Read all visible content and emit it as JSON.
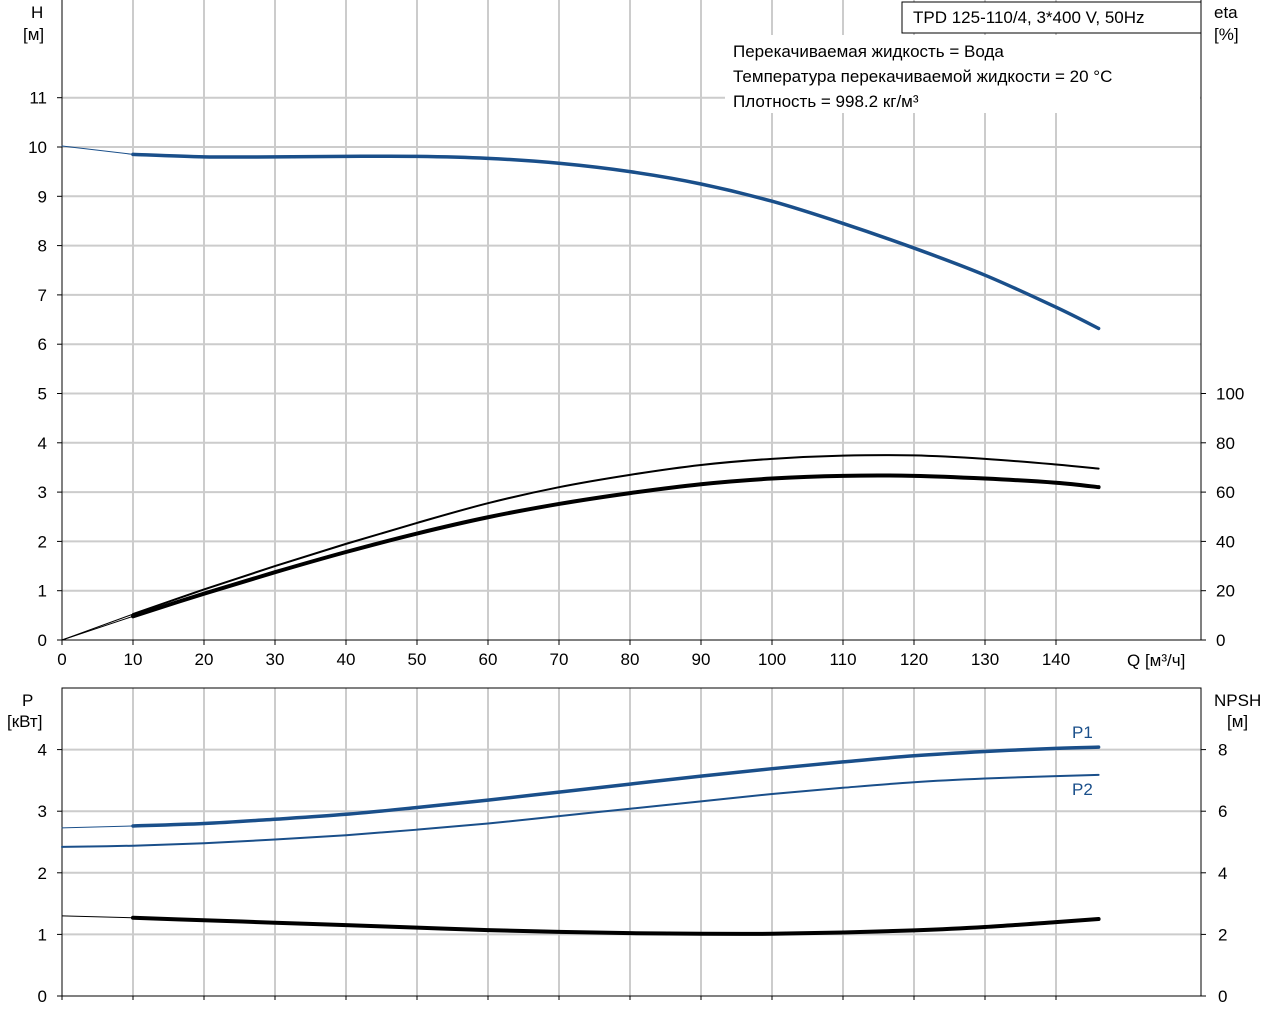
{
  "header": {
    "pump_model": "TPD 125-110/4, 3*400 V, 50Hz",
    "liquid": "Перекачиваемая жидкость = Вода",
    "temperature": "Температура перекачиваемой жидкости = 20 °C",
    "density": "Плотность = 998.2 кг/м³"
  },
  "colors": {
    "blue": "#1a4f8a",
    "black": "#000000",
    "grid": "#cccccc"
  },
  "chart_data": [
    {
      "type": "line",
      "x_axis": {
        "label": "Q [м³/ч]",
        "range": [
          0,
          148
        ],
        "ticks": [
          "0",
          "10",
          "20",
          "30",
          "40",
          "50",
          "60",
          "70",
          "80",
          "90",
          "100",
          "110",
          "120",
          "130",
          "140"
        ]
      },
      "y_left": {
        "label_top": "H",
        "label_unit": "[м]",
        "range": [
          0,
          12
        ],
        "ticks": [
          "0",
          "1",
          "2",
          "3",
          "4",
          "5",
          "6",
          "7",
          "8",
          "9",
          "10",
          "11"
        ]
      },
      "y_right": {
        "label_top": "eta",
        "label_unit": "[%]",
        "range": [
          0,
          100
        ],
        "ticks": [
          "0",
          "20",
          "40",
          "60",
          "80",
          "100"
        ]
      },
      "grid": true,
      "series": [
        {
          "axis": "left",
          "color": "#1a4f8a",
          "width": 3.5,
          "points": [
            [
              10,
              9.85
            ],
            [
              20,
              9.8
            ],
            [
              30,
              9.8
            ],
            [
              40,
              9.81
            ],
            [
              50,
              9.81
            ],
            [
              60,
              9.77
            ],
            [
              70,
              9.67
            ],
            [
              80,
              9.5
            ],
            [
              90,
              9.25
            ],
            [
              100,
              8.9
            ],
            [
              110,
              8.45
            ],
            [
              120,
              7.95
            ],
            [
              130,
              7.4
            ],
            [
              140,
              6.75
            ],
            [
              146,
              6.32
            ]
          ]
        },
        {
          "axis": "left",
          "color": "#1a4f8a",
          "width": 1,
          "points": [
            [
              0,
              10.02
            ],
            [
              10,
              9.85
            ]
          ]
        },
        {
          "axis": "right",
          "color": "#000000",
          "width": 2,
          "points": [
            [
              10,
              10.5
            ],
            [
              20,
              20.5
            ],
            [
              30,
              30
            ],
            [
              40,
              39
            ],
            [
              50,
              47.5
            ],
            [
              60,
              55.5
            ],
            [
              70,
              62
            ],
            [
              80,
              67
            ],
            [
              90,
              71
            ],
            [
              100,
              73.5
            ],
            [
              110,
              74.8
            ],
            [
              120,
              74.9
            ],
            [
              130,
              73.5
            ],
            [
              140,
              71.2
            ],
            [
              146,
              69.5
            ]
          ]
        },
        {
          "axis": "right",
          "color": "#000000",
          "width": 4,
          "points": [
            [
              10,
              9.6
            ],
            [
              20,
              18.8
            ],
            [
              30,
              27.5
            ],
            [
              40,
              35.7
            ],
            [
              50,
              43.2
            ],
            [
              60,
              49.8
            ],
            [
              70,
              55.2
            ],
            [
              80,
              59.6
            ],
            [
              90,
              63.2
            ],
            [
              100,
              65.5
            ],
            [
              110,
              66.6
            ],
            [
              120,
              66.6
            ],
            [
              130,
              65.5
            ],
            [
              140,
              63.8
            ],
            [
              146,
              62
            ]
          ]
        },
        {
          "axis": "right",
          "color": "#000000",
          "width": 1,
          "points": [
            [
              0,
              0
            ],
            [
              10,
              10.5
            ]
          ]
        },
        {
          "axis": "right",
          "color": "#000000",
          "width": 1,
          "points": [
            [
              0,
              0
            ],
            [
              10,
              9.6
            ]
          ]
        }
      ]
    },
    {
      "type": "line",
      "x_axis": {
        "range": [
          0,
          148
        ]
      },
      "y_left": {
        "label_top": "P",
        "label_unit": "[кВт]",
        "range": [
          0,
          4.6
        ],
        "ticks": [
          "0",
          "1",
          "2",
          "3",
          "4"
        ]
      },
      "y_right": {
        "label_top": "NPSH",
        "label_unit": "[м]",
        "range": [
          0,
          9.2
        ],
        "ticks": [
          "0",
          "2",
          "4",
          "6",
          "8"
        ]
      },
      "grid": true,
      "series": [
        {
          "name": "P1",
          "axis": "left",
          "color": "#1a4f8a",
          "width": 3.5,
          "points": [
            [
              10,
              2.76
            ],
            [
              20,
              2.8
            ],
            [
              30,
              2.87
            ],
            [
              40,
              2.95
            ],
            [
              50,
              3.06
            ],
            [
              60,
              3.18
            ],
            [
              70,
              3.31
            ],
            [
              80,
              3.44
            ],
            [
              90,
              3.57
            ],
            [
              100,
              3.69
            ],
            [
              110,
              3.8
            ],
            [
              120,
              3.9
            ],
            [
              130,
              3.97
            ],
            [
              140,
              4.02
            ],
            [
              146,
              4.04
            ]
          ]
        },
        {
          "axis": "left",
          "color": "#1a4f8a",
          "width": 1,
          "points": [
            [
              0,
              2.73
            ],
            [
              10,
              2.76
            ]
          ]
        },
        {
          "name": "P2",
          "axis": "left",
          "color": "#1a4f8a",
          "width": 2,
          "points": [
            [
              0,
              2.42
            ],
            [
              10,
              2.44
            ],
            [
              20,
              2.48
            ],
            [
              30,
              2.54
            ],
            [
              40,
              2.61
            ],
            [
              50,
              2.7
            ],
            [
              60,
              2.8
            ],
            [
              70,
              2.92
            ],
            [
              80,
              3.04
            ],
            [
              90,
              3.16
            ],
            [
              100,
              3.28
            ],
            [
              110,
              3.38
            ],
            [
              120,
              3.47
            ],
            [
              130,
              3.53
            ],
            [
              140,
              3.57
            ],
            [
              146,
              3.59
            ]
          ]
        },
        {
          "axis": "right",
          "color": "#000000",
          "width": 4,
          "points": [
            [
              10,
              2.54
            ],
            [
              20,
              2.46
            ],
            [
              30,
              2.38
            ],
            [
              40,
              2.3
            ],
            [
              50,
              2.22
            ],
            [
              60,
              2.14
            ],
            [
              70,
              2.08
            ],
            [
              80,
              2.04
            ],
            [
              90,
              2.02
            ],
            [
              100,
              2.02
            ],
            [
              110,
              2.06
            ],
            [
              120,
              2.13
            ],
            [
              130,
              2.24
            ],
            [
              140,
              2.4
            ],
            [
              146,
              2.5
            ]
          ]
        },
        {
          "axis": "right",
          "color": "#000000",
          "width": 1,
          "points": [
            [
              0,
              2.6
            ],
            [
              10,
              2.54
            ]
          ]
        }
      ],
      "series_labels": [
        "P1",
        "P2"
      ]
    }
  ]
}
